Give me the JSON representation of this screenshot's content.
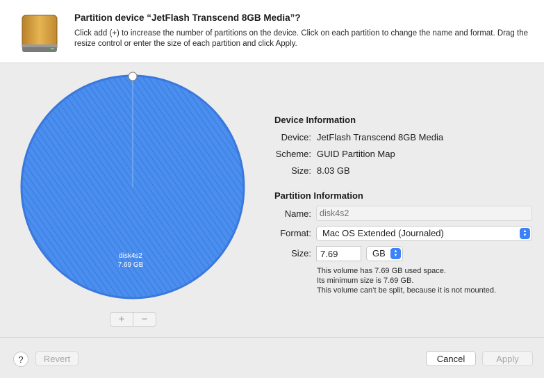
{
  "header": {
    "title": "Partition device “JetFlash Transcend 8GB Media”?",
    "description": "Click add (+) to increase the number of partitions on the device. Click on each partition to change the name and format. Drag the resize control or enter the size of each partition and click Apply.",
    "icon": "external-drive-icon"
  },
  "partition_map": {
    "slices": [
      {
        "name": "disk4s2",
        "size": "7.69 GB",
        "color": "#3b82f6"
      }
    ],
    "add_label": "+",
    "remove_label": "−"
  },
  "device_info": {
    "title": "Device Information",
    "device_label": "Device:",
    "device_value": "JetFlash Transcend 8GB Media",
    "scheme_label": "Scheme:",
    "scheme_value": "GUID Partition Map",
    "size_label": "Size:",
    "size_value": "8.03 GB"
  },
  "partition_info": {
    "title": "Partition Information",
    "name_label": "Name:",
    "name_placeholder": "disk4s2",
    "format_label": "Format:",
    "format_value": "Mac OS Extended (Journaled)",
    "size_label": "Size:",
    "size_value": "7.69",
    "size_unit": "GB",
    "notes": [
      "This volume has 7.69 GB used space.",
      "Its minimum size is 7.69 GB.",
      "This volume can’t be split, because it is not mounted."
    ]
  },
  "footer": {
    "help_label": "?",
    "revert_label": "Revert",
    "cancel_label": "Cancel",
    "apply_label": "Apply"
  },
  "colors": {
    "accent": "#3b82f6",
    "pie_fill": "#4a8ef0",
    "pie_stripe": "#3f7fe0",
    "drive_gold": "#d9a441"
  }
}
